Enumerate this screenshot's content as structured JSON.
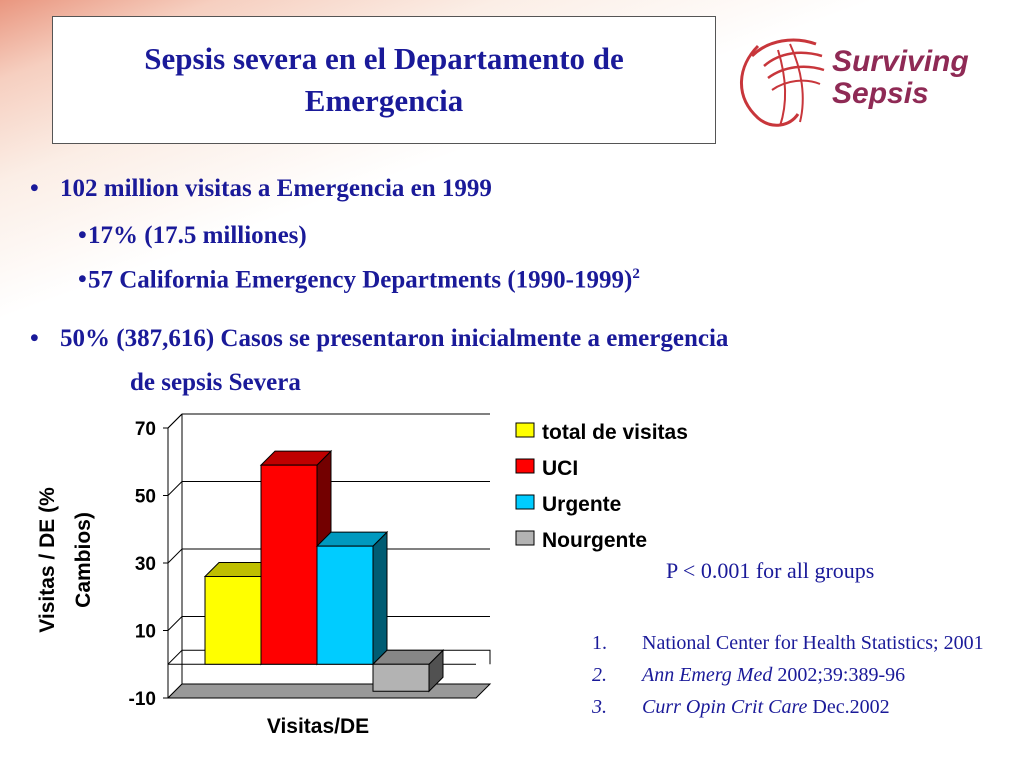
{
  "header": {
    "title_line1": "Sepsis severa en el Departamento de",
    "title_line2": "Emergencia",
    "logo_line1": "Surviving",
    "logo_line2": "Sepsis"
  },
  "bullets": {
    "b1_mark": "•",
    "b1": "102 million visitas a  Emergencia en 1999",
    "b2_mark": "•",
    "b2": "17% (17.5 milliones)",
    "b3_mark": "•",
    "b3": "57 California Emergency Departments (1990-1999)",
    "b3_sup": "2",
    "b4_mark": "•",
    "b4_line1": "50% (387,616) Casos se presentaron inicialmente a emergencia",
    "b4_line2": "de sepsis   Severa"
  },
  "pvalue": "P < 0.001 for all groups",
  "references": [
    {
      "num": "1.",
      "text": "National Center for Health Statistics; 2001",
      "italic": ""
    },
    {
      "num": "2.",
      "italic": "Ann Emerg Med",
      "text": " 2002;39:389-96"
    },
    {
      "num": "3.",
      "italic": "Curr Opin Crit Care",
      "text": " Dec.2002"
    }
  ],
  "chart_data": {
    "type": "bar",
    "title": "",
    "xlabel": "Visitas/DE",
    "ylabel": "Visitas / DE (% Cambios)",
    "ylabel_line1": "Visitas / DE (%",
    "ylabel_line2": "Cambios)",
    "ylim": [
      -10,
      70
    ],
    "ticks": [
      "70",
      "50",
      "30",
      "10",
      "-10"
    ],
    "grid": true,
    "legend_position": "right",
    "series": [
      {
        "name": "total de visitas",
        "value": 26,
        "color": "#ffff00"
      },
      {
        "name": "UCI",
        "value": 59,
        "color": "#ff0000"
      },
      {
        "name": "Urgente",
        "value": 35,
        "color": "#00ccff"
      },
      {
        "name": "Nourgente",
        "value": -8,
        "color": "#b3b3b3"
      }
    ]
  }
}
